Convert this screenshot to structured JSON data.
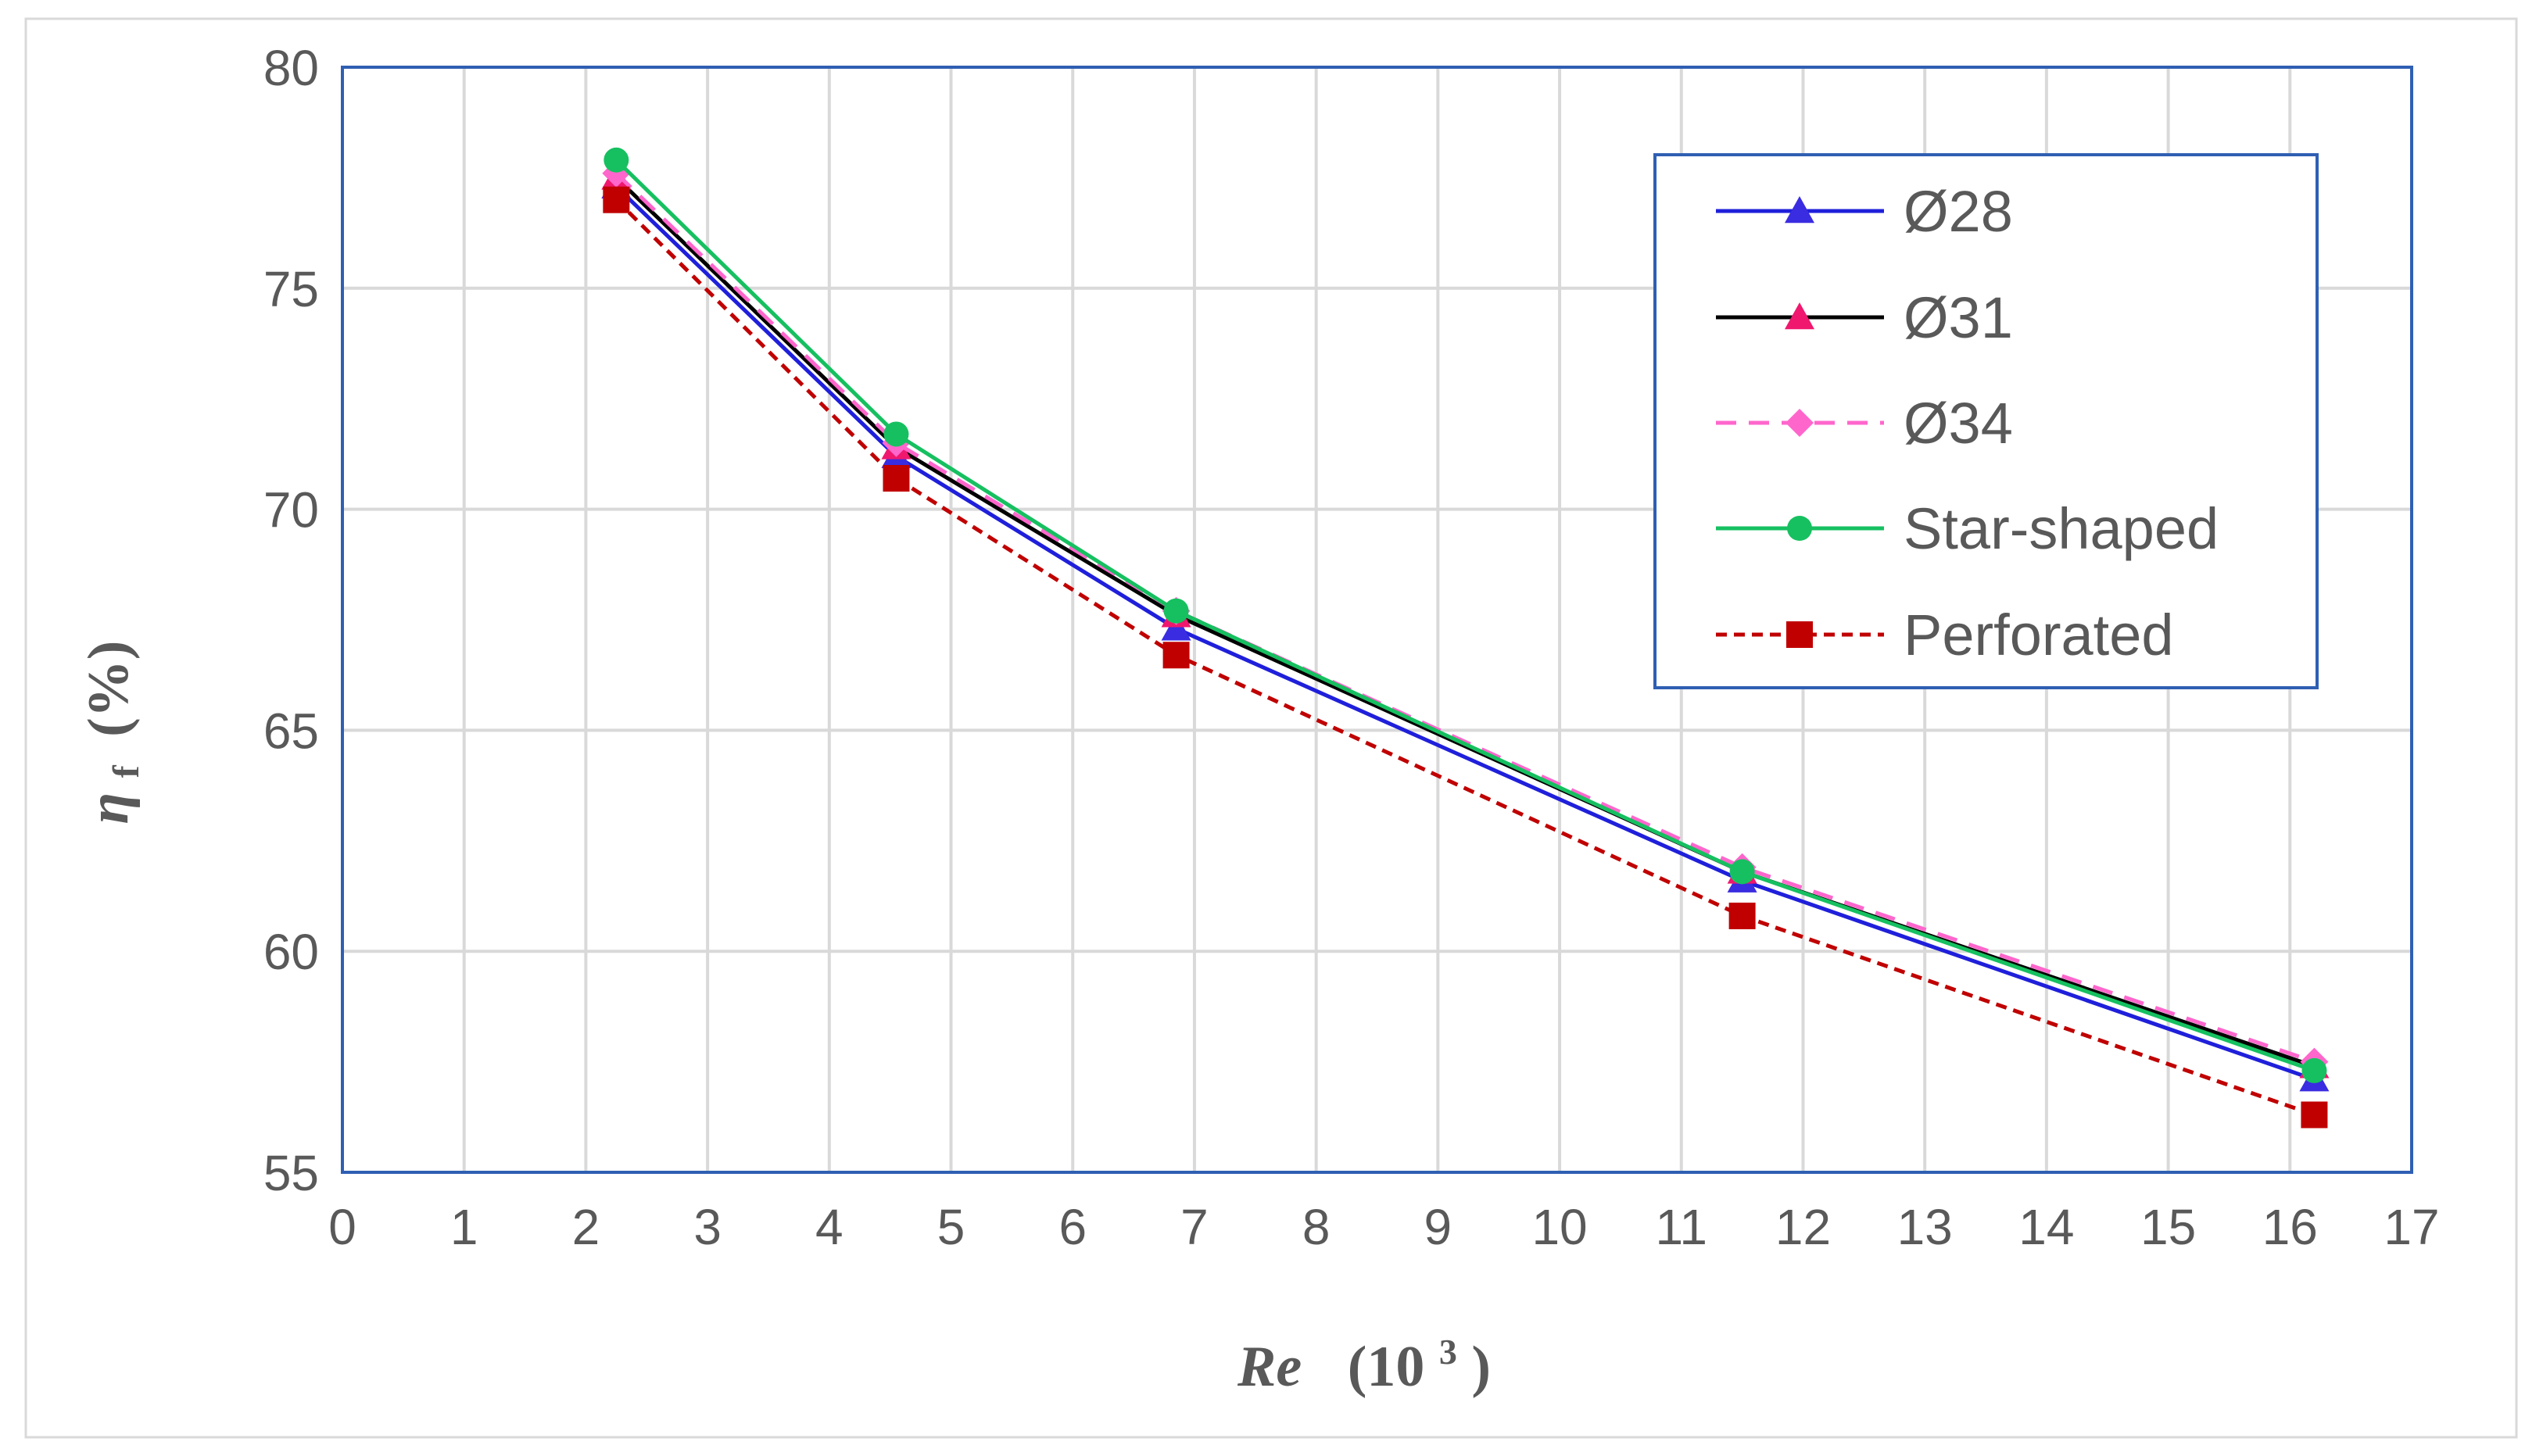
{
  "chart_data": {
    "type": "line",
    "title": "",
    "xlabel": {
      "var": "Re",
      "unit_prefix": "(10",
      "unit_exp": "3",
      "unit_suffix": ")"
    },
    "ylabel": {
      "var": "η",
      "sub": "f",
      "unit": "(%)"
    },
    "xlim": [
      0,
      17
    ],
    "ylim": [
      55,
      80
    ],
    "xticks": [
      "0",
      "1",
      "2",
      "3",
      "4",
      "5",
      "6",
      "7",
      "8",
      "9",
      "10",
      "11",
      "12",
      "13",
      "14",
      "15",
      "16",
      "17"
    ],
    "yticks": [
      "55",
      "60",
      "65",
      "70",
      "75",
      "80"
    ],
    "grid": true,
    "legend_position": "top-right",
    "x": [
      2.25,
      4.55,
      6.85,
      11.5,
      16.2
    ],
    "series": [
      {
        "name": "Ø28",
        "values": [
          77.3,
          71.2,
          67.3,
          61.6,
          57.1
        ],
        "color": "#1f1fdb",
        "dash": "solid",
        "marker": "triangle",
        "marker_color": "#3a2ce0"
      },
      {
        "name": "Ø31",
        "values": [
          77.5,
          71.4,
          67.6,
          61.8,
          57.4
        ],
        "color": "#000000",
        "dash": "solid",
        "marker": "triangle",
        "marker_color": "#f0176e"
      },
      {
        "name": "Ø34",
        "values": [
          77.6,
          71.5,
          67.7,
          61.9,
          57.5
        ],
        "color": "#ff66cc",
        "dash": "dashed",
        "marker": "diamond",
        "marker_color": "#ff66cc"
      },
      {
        "name": "Star-shaped",
        "values": [
          77.9,
          71.7,
          67.7,
          61.8,
          57.3
        ],
        "color": "#16c060",
        "dash": "solid",
        "marker": "circle",
        "marker_color": "#16c060"
      },
      {
        "name": "Perforated",
        "values": [
          77.0,
          70.7,
          66.7,
          60.8,
          56.3
        ],
        "color": "#c00000",
        "dash": "dotted",
        "marker": "square",
        "marker_color": "#c00000"
      }
    ]
  }
}
